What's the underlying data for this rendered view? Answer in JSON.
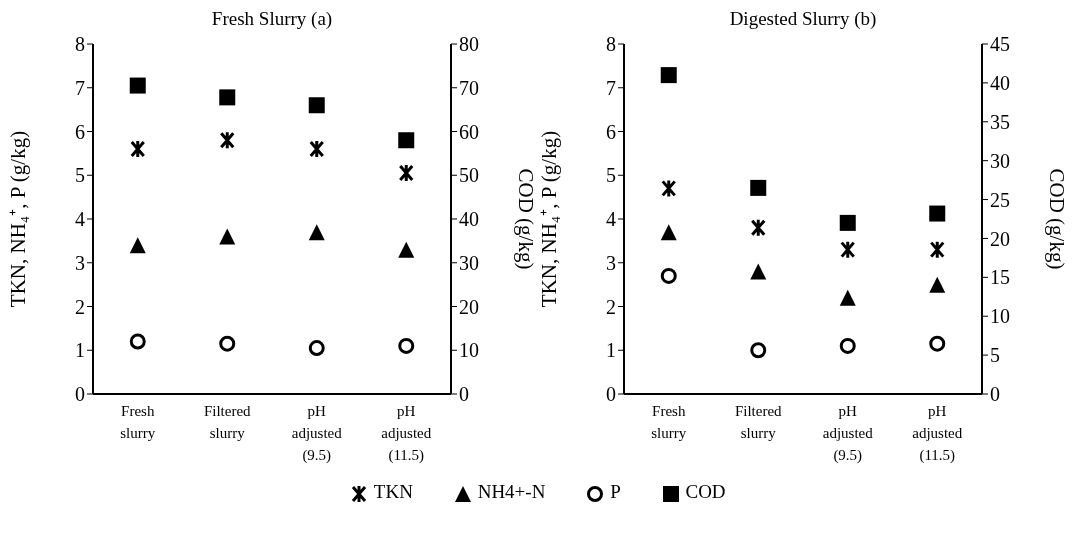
{
  "chart_data": [
    {
      "type": "scatter",
      "title": "Fresh Slurry (a)",
      "ylabel": "TKN, NH₄⁺, P (g/kg)",
      "y2label": "COD (g/kg)",
      "categories": [
        "Fresh slurry",
        "Filtered slurry",
        "pH adjusted (9.5)",
        "pH adjusted (11.5)"
      ],
      "ylim": [
        0,
        8
      ],
      "yticks": [
        0,
        1,
        2,
        3,
        4,
        5,
        6,
        7,
        8
      ],
      "y2lim": [
        0,
        80
      ],
      "y2ticks": [
        0,
        10,
        20,
        30,
        40,
        50,
        60,
        70,
        80
      ],
      "grid": false,
      "legend": "bottom",
      "series": [
        {
          "name": "TKN",
          "color": "#000000",
          "marker": "cross",
          "values": [
            5.6,
            5.8,
            5.6,
            5.05
          ]
        },
        {
          "name": "NH4+-N",
          "color": "#000000",
          "marker": "triangle",
          "values": [
            3.4,
            3.6,
            3.7,
            3.3
          ]
        },
        {
          "name": "P",
          "color": "#000000",
          "marker": "circle",
          "values": [
            1.2,
            1.15,
            1.05,
            1.1
          ]
        },
        {
          "name": "COD",
          "color": "#000000",
          "marker": "square",
          "axis": "y2",
          "values": [
            70.5,
            67.8,
            66,
            58
          ]
        }
      ]
    },
    {
      "type": "scatter",
      "title": "Digested  Slurry (b)",
      "ylabel": "TKN, NH₄⁺, P (g/kg)",
      "y2label": "COD (g/kg)",
      "categories": [
        "Fresh slurry",
        "Filtered slurry",
        "pH adjusted (9.5)",
        "pH adjusted (11.5)"
      ],
      "ylim": [
        0,
        8
      ],
      "yticks": [
        0,
        1,
        2,
        3,
        4,
        5,
        6,
        7,
        8
      ],
      "y2lim": [
        0,
        45
      ],
      "y2ticks": [
        0,
        5,
        10,
        15,
        20,
        25,
        30,
        35,
        40,
        45
      ],
      "grid": false,
      "series": [
        {
          "color": "#000000",
          "marker": "cross",
          "values": [
            4.7,
            3.8,
            3.3,
            3.3
          ]
        },
        {
          "color": "#000000",
          "marker": "triangle",
          "values": [
            3.7,
            2.8,
            2.2,
            2.5
          ]
        },
        {
          "color": "#000000",
          "marker": "circle",
          "values": [
            2.7,
            1.0,
            1.1,
            1.15
          ]
        },
        {
          "color": "#000000",
          "marker": "square",
          "axis": "y2",
          "values": [
            41,
            26.5,
            22,
            23.2
          ]
        }
      ]
    }
  ]
}
